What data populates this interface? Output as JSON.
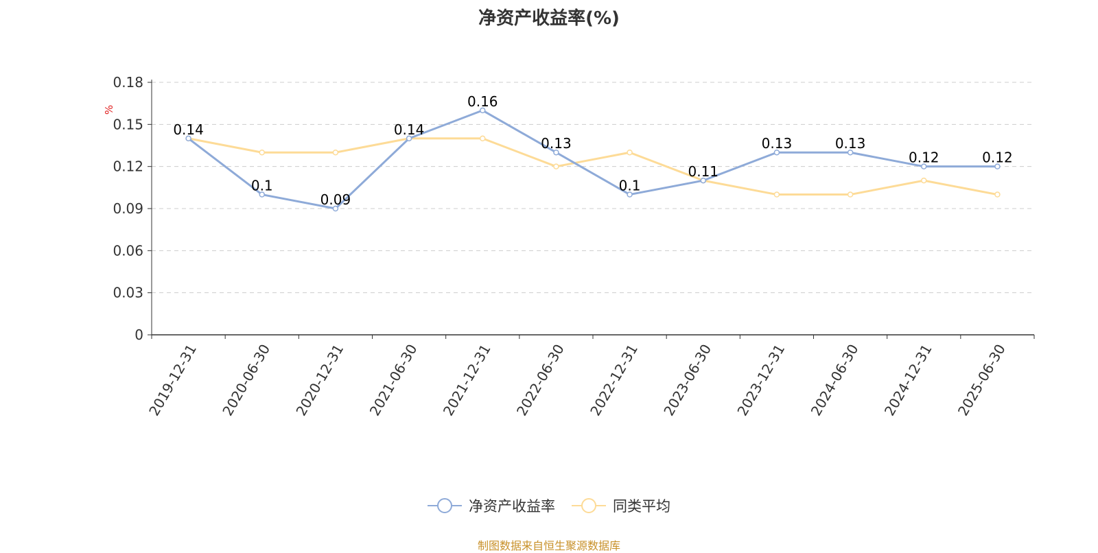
{
  "chart_data": {
    "type": "line",
    "title": "净资产收益率(%)",
    "ylabel": "%",
    "xlabel": "",
    "categories": [
      "2019-12-31",
      "2020-06-30",
      "2020-12-31",
      "2021-06-30",
      "2021-12-31",
      "2022-06-30",
      "2022-12-31",
      "2023-06-30",
      "2023-12-31",
      "2024-06-30",
      "2024-12-31",
      "2025-06-30"
    ],
    "series": [
      {
        "name": "净资产收益率",
        "color": "#8eaad8",
        "values": [
          0.14,
          0.1,
          0.09,
          0.14,
          0.16,
          0.13,
          0.1,
          0.11,
          0.13,
          0.13,
          0.12,
          0.12
        ],
        "labels": [
          "0.14",
          "0.1",
          "0.09",
          "0.14",
          "0.16",
          "0.13",
          "0.1",
          "0.11",
          "0.13",
          "0.13",
          "0.12",
          "0.12"
        ]
      },
      {
        "name": "同类平均",
        "color": "#fddb97",
        "values": [
          0.14,
          0.13,
          0.13,
          0.14,
          0.14,
          0.12,
          0.13,
          0.11,
          0.1,
          0.1,
          0.11,
          0.1
        ]
      }
    ],
    "ylim": [
      0,
      0.18
    ],
    "yticks": [
      "0",
      "0.03",
      "0.06",
      "0.09",
      "0.12",
      "0.15",
      "0.18"
    ],
    "grid": true,
    "legend_position": "bottom-center"
  },
  "source_note": "制图数据来自恒生聚源数据库"
}
